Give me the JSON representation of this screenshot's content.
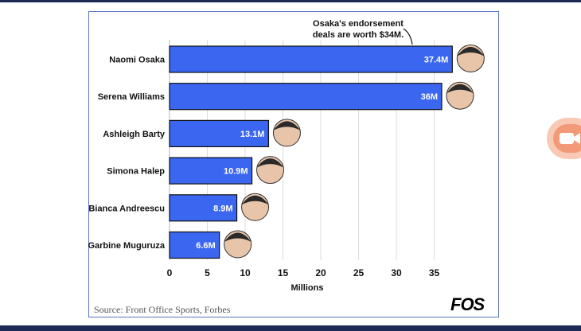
{
  "chart_data": {
    "type": "bar",
    "orientation": "horizontal",
    "categories": [
      "Naomi Osaka",
      "Serena Williams",
      "Ashleigh Barty",
      "Simona Halep",
      "Bianca Andreescu",
      "Garbine Muguruza"
    ],
    "values": [
      37.4,
      36,
      13.1,
      10.9,
      8.9,
      6.6
    ],
    "value_labels": [
      "37.4M",
      "36M",
      "13.1M",
      "10.9M",
      "8.9M",
      "6.6M"
    ],
    "xlabel": "Millions",
    "xticks": [
      0,
      5,
      10,
      15,
      20,
      25,
      30,
      35
    ],
    "xlim": [
      0,
      40
    ],
    "annotation": {
      "lines": [
        "Osaka's endorsement",
        "deals are worth $34M."
      ],
      "target": "Naomi Osaka"
    },
    "bar_color": "#3a66f0",
    "grid": true
  },
  "footer": {
    "source": "Source: Front Office Sports, Forbes",
    "brand": "FOS"
  },
  "overlay": {
    "icon": "video-camera-icon"
  }
}
